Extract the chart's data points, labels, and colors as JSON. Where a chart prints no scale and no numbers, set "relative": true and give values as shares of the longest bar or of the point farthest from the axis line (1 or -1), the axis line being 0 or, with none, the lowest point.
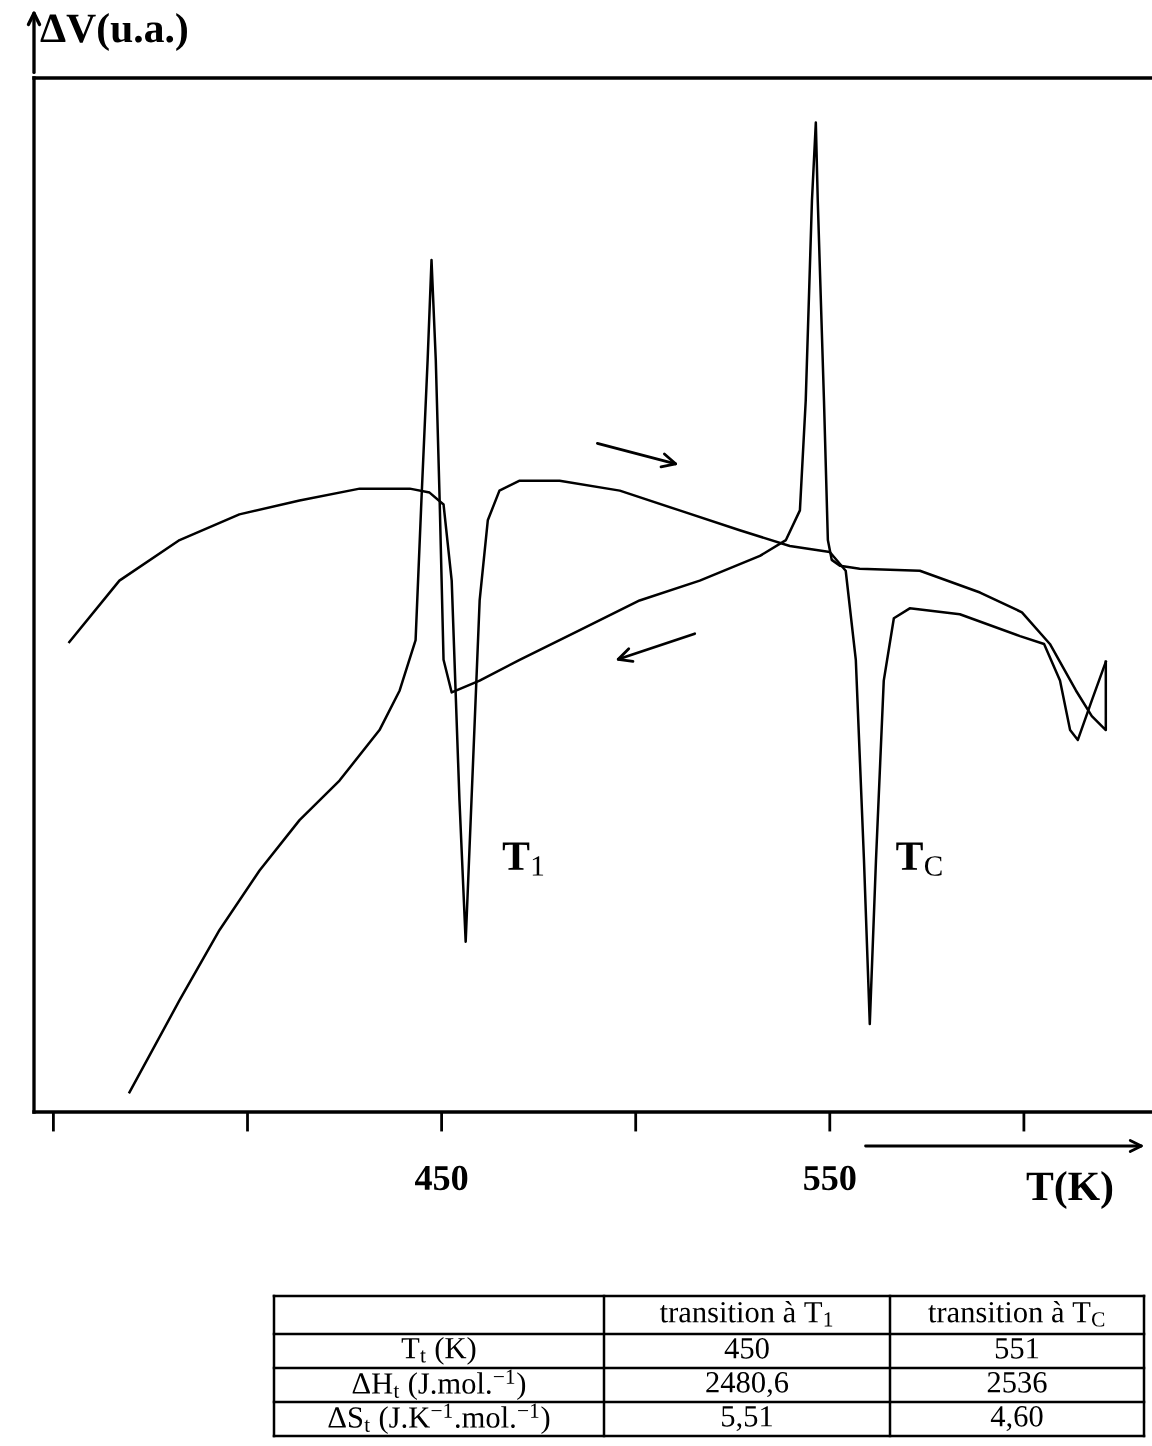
{
  "chart_data": {
    "type": "line",
    "relative": true,
    "ylabel": "ΔV(u.a.)",
    "xlabel": "T(K)",
    "xlim": [
      345,
      633
    ],
    "xticks": [
      {
        "value": 350,
        "label": null
      },
      {
        "value": 400,
        "label": null
      },
      450,
      {
        "value": 500,
        "label": null
      },
      550,
      {
        "value": 600,
        "label": null
      }
    ],
    "tick_labels": "x",
    "series": [
      {
        "color": "#000000",
        "x": [
          354.1,
          367.0,
          382.5,
          397.9,
          413.4,
          428.9,
          441.8,
          446.9,
          450.5,
          452.6,
          454.6,
          456.2,
          457.7,
          459.8,
          461.9,
          464.9,
          470.1,
          480.4,
          495.9,
          511.3,
          526.8,
          539.7,
          550.0,
          554.1,
          556.7,
          558.8,
          560.3,
          561.9,
          563.9,
          566.5,
          570.6,
          583.5,
          599.0,
          605.2,
          609.3,
          611.9,
          613.9,
          617.5,
          621.1
        ],
        "values": [
          0.475,
          0.537,
          0.578,
          0.604,
          0.618,
          0.63,
          0.63,
          0.626,
          0.614,
          0.537,
          0.315,
          0.172,
          0.315,
          0.517,
          0.598,
          0.628,
          0.638,
          0.638,
          0.628,
          0.608,
          0.588,
          0.572,
          0.566,
          0.547,
          0.457,
          0.255,
          0.089,
          0.255,
          0.436,
          0.499,
          0.509,
          0.503,
          0.481,
          0.473,
          0.436,
          0.386,
          0.376,
          0.416,
          0.455
        ]
      },
      {
        "color": "#000000",
        "x": [
          621.1,
          621.1,
          617.5,
          613.4,
          606.7,
          599.5,
          588.7,
          573.2,
          557.7,
          552.6,
          550.5,
          549.5,
          548.5,
          546.9,
          546.4,
          545.4,
          543.8,
          542.3,
          538.7,
          532.0,
          516.5,
          501.0,
          485.6,
          470.1,
          459.8,
          452.6,
          450.5,
          449.5,
          448.5,
          447.4,
          446.4,
          444.8,
          443.3,
          439.2,
          434.0,
          423.7,
          413.4,
          403.1,
          392.8,
          382.5,
          369.6
        ],
        "values": [
          0.455,
          0.386,
          0.4,
          0.426,
          0.473,
          0.505,
          0.525,
          0.547,
          0.549,
          0.552,
          0.558,
          0.578,
          0.719,
          0.921,
          1.0,
          0.921,
          0.719,
          0.608,
          0.578,
          0.562,
          0.537,
          0.517,
          0.487,
          0.457,
          0.436,
          0.424,
          0.457,
          0.618,
          0.76,
          0.861,
          0.76,
          0.618,
          0.477,
          0.426,
          0.386,
          0.335,
          0.295,
          0.244,
          0.184,
          0.113,
          0.02
        ]
      }
    ],
    "annotations": [
      "T$_{1}$",
      "T$_{C}$",
      "transition à T$_{1}$",
      "transition à T$_{C}$",
      "T$_{t}$ (K)",
      "450",
      "551",
      "ΔH$_{t}$ (J.mol.$^{−1}$)",
      "2480,6",
      "2536",
      "ΔS$_{t}$ (J.K$^{−1}$.mol.$^{−1}$)",
      "5,51",
      "4,60"
    ]
  }
}
